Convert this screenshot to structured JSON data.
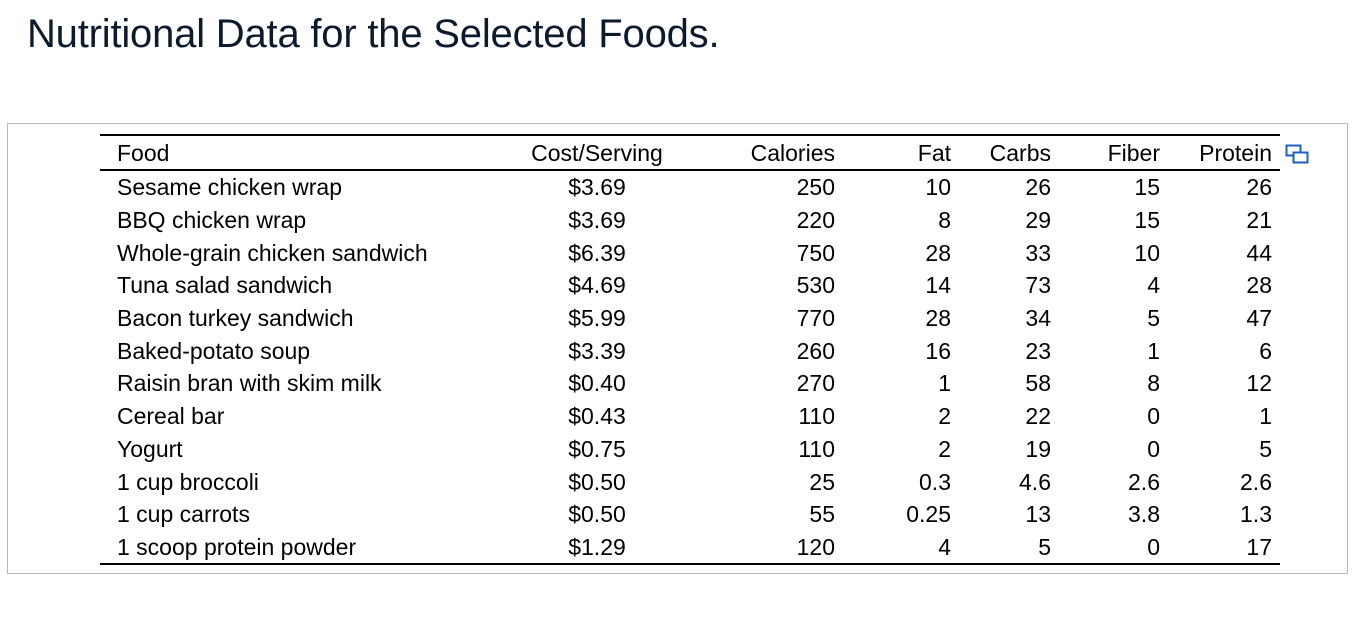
{
  "page": {
    "title": "Nutritional Data for the Selected Foods."
  },
  "table": {
    "headers": [
      "Food",
      "Cost/Serving",
      "Calories",
      "Fat",
      "Carbs",
      "Fiber",
      "Protein"
    ],
    "rows": [
      [
        "Sesame chicken wrap",
        "$3.69",
        "250",
        "10",
        "26",
        "15",
        "26"
      ],
      [
        "BBQ chicken wrap",
        "$3.69",
        "220",
        "8",
        "29",
        "15",
        "21"
      ],
      [
        "Whole-grain chicken sandwich",
        "$6.39",
        "750",
        "28",
        "33",
        "10",
        "44"
      ],
      [
        "Tuna salad sandwich",
        "$4.69",
        "530",
        "14",
        "73",
        "4",
        "28"
      ],
      [
        "Bacon turkey sandwich",
        "$5.99",
        "770",
        "28",
        "34",
        "5",
        "47"
      ],
      [
        "Baked-potato soup",
        "$3.39",
        "260",
        "16",
        "23",
        "1",
        "6"
      ],
      [
        "Raisin bran with skim milk",
        "$0.40",
        "270",
        "1",
        "58",
        "8",
        "12"
      ],
      [
        "Cereal bar",
        "$0.43",
        "110",
        "2",
        "22",
        "0",
        "1"
      ],
      [
        "Yogurt",
        "$0.75",
        "110",
        "2",
        "19",
        "0",
        "5"
      ],
      [
        "1 cup broccoli",
        "$0.50",
        "25",
        "0.3",
        "4.6",
        "2.6",
        "2.6"
      ],
      [
        "1 cup carrots",
        "$0.50",
        "55",
        "0.25",
        "13",
        "3.8",
        "1.3"
      ],
      [
        "1 scoop protein powder",
        "$1.29",
        "120",
        "4",
        "5",
        "0",
        "17"
      ]
    ]
  },
  "icons": {
    "copy": "copy-table-icon"
  },
  "colors": {
    "title": "#0c1a2e",
    "icon": "#1f5fbf",
    "frame": "#b8b8b8"
  }
}
